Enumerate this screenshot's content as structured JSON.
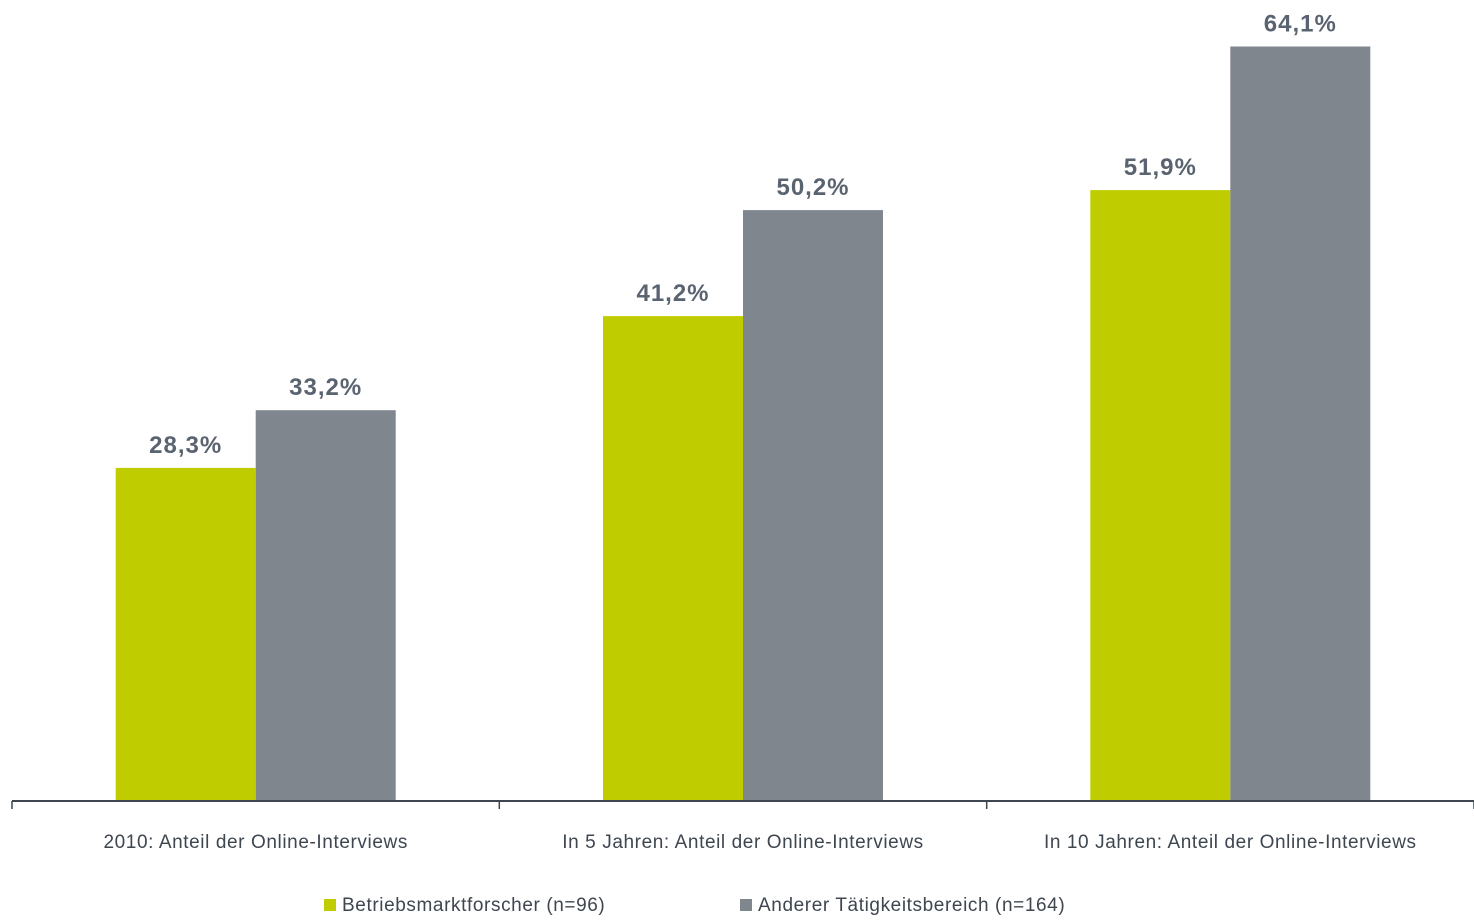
{
  "chart_data": {
    "type": "bar",
    "categories": [
      "2010: Anteil der Online-Interviews",
      "In 5 Jahren: Anteil der Online-Interviews",
      "In 10 Jahren: Anteil der Online-Interviews"
    ],
    "series": [
      {
        "name": "Betriebsmarktforscher (n=96)",
        "color": "#bfcd00",
        "values": [
          28.3,
          41.2,
          51.9
        ],
        "labels": [
          "28,3%",
          "41,2%",
          "51,9%"
        ]
      },
      {
        "name": "Anderer Tätigkeitsbereich (n=164)",
        "color": "#80868e",
        "values": [
          33.2,
          50.2,
          64.1
        ],
        "labels": [
          "33,2%",
          "50,2%",
          "64,1%"
        ]
      }
    ],
    "ylim": [
      0,
      70
    ],
    "grid": false,
    "legend": "bottom-center",
    "title": "",
    "xlabel": "",
    "ylabel": ""
  }
}
